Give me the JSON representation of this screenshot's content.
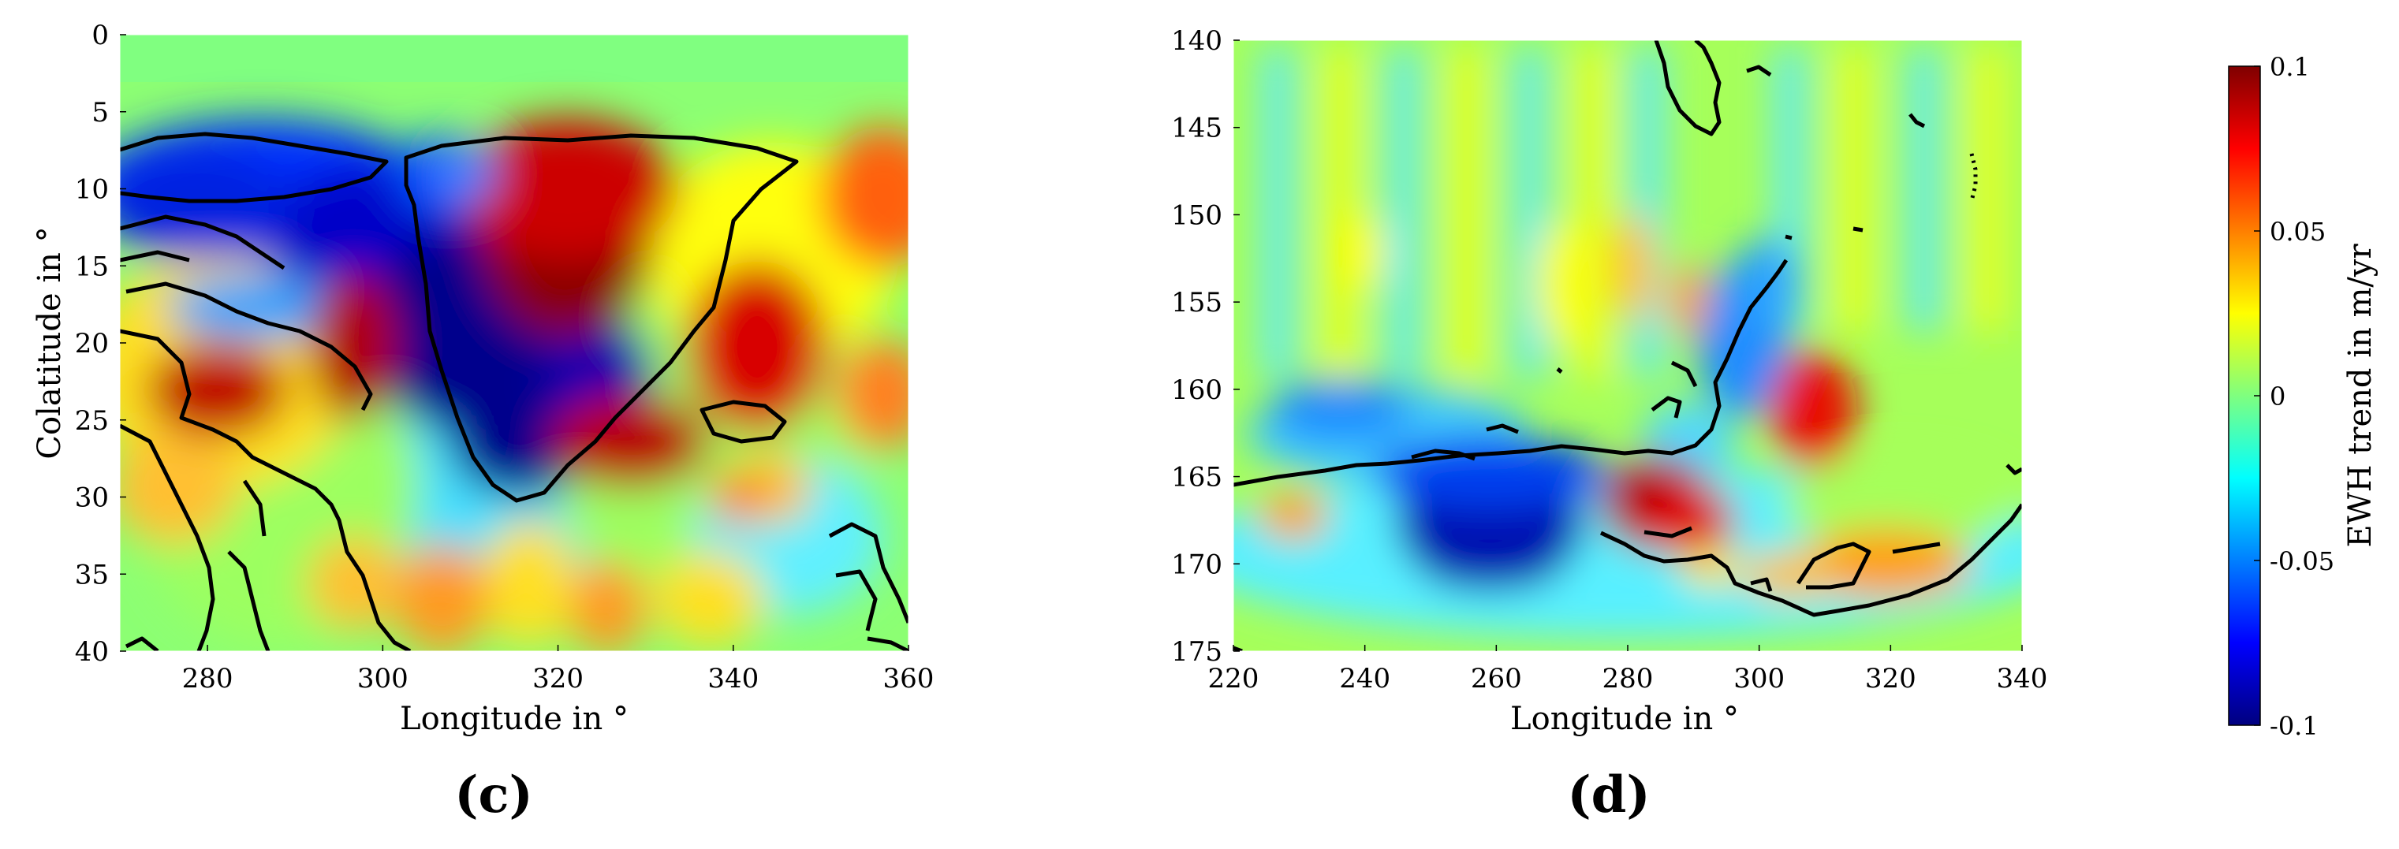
{
  "panels": [
    {
      "id": "c",
      "caption": "(c)",
      "xlabel": "Longitude in °",
      "ylabel": "Colatitude in °",
      "xticks": [
        "280",
        "300",
        "320",
        "340",
        "360"
      ],
      "yticks": [
        "0",
        "5",
        "10",
        "15",
        "20",
        "25",
        "30",
        "35",
        "40"
      ]
    },
    {
      "id": "d",
      "caption": "(d)",
      "xlabel": "Longitude in °",
      "ylabel": "",
      "xticks": [
        "220",
        "240",
        "260",
        "280",
        "300",
        "320",
        "340"
      ],
      "yticks": [
        "140",
        "145",
        "150",
        "155",
        "160",
        "165",
        "170",
        "175"
      ]
    }
  ],
  "colorbar": {
    "label": "EWH trend in m/yr",
    "ticks": [
      "0.1",
      "0.05",
      "0",
      "-0.05",
      "-0.1"
    ],
    "colormap": [
      "#00007f",
      "#0000ff",
      "#007fff",
      "#00ffff",
      "#7fff7f",
      "#ffff00",
      "#ff7f00",
      "#ff0000",
      "#7f0000"
    ]
  },
  "chart_data": [
    {
      "type": "heatmap",
      "title": "",
      "xlabel": "Longitude in °",
      "ylabel": "Colatitude in °",
      "xlim": [
        270,
        360
      ],
      "ylim": [
        0,
        40
      ],
      "y_axis_inverted": true,
      "value_range": [
        -0.1,
        0.1
      ],
      "value_units": "m/yr",
      "features": [
        {
          "lon": 315,
          "colat": 20,
          "value": -0.1
        },
        {
          "lon": 321,
          "colat": 14,
          "value": 0.1
        },
        {
          "lon": 298,
          "colat": 21,
          "value": 0.1
        },
        {
          "lon": 283,
          "colat": 23,
          "value": 0.1
        },
        {
          "lon": 327,
          "colat": 27,
          "value": 0.1
        },
        {
          "lon": 344,
          "colat": 20,
          "value": 0.09
        },
        {
          "lon": 290,
          "colat": 10,
          "value": -0.1
        },
        {
          "lon": 357,
          "colat": 13,
          "value": 0.07
        },
        {
          "lon": 300,
          "colat": 28,
          "value": -0.05
        },
        {
          "lon": 331,
          "colat": 30,
          "value": 0.06
        },
        {
          "lon": 329,
          "colat": 35,
          "value": 0.06
        }
      ]
    },
    {
      "type": "heatmap",
      "title": "",
      "xlabel": "Longitude in °",
      "ylabel": "",
      "xlim": [
        220,
        340
      ],
      "ylim": [
        140,
        175
      ],
      "y_axis_inverted": true,
      "value_range": [
        -0.1,
        0.1
      ],
      "value_units": "m/yr",
      "features": [
        {
          "lon": 257,
          "colat": 168,
          "value": -0.1
        },
        {
          "lon": 284,
          "colat": 167,
          "value": 0.1
        },
        {
          "lon": 306,
          "colat": 161,
          "value": 0.08
        },
        {
          "lon": 312,
          "colat": 170,
          "value": 0.06
        },
        {
          "lon": 247,
          "colat": 161,
          "value": -0.06
        },
        {
          "lon": 292,
          "colat": 155,
          "value": -0.06
        },
        {
          "lon": 288,
          "colat": 152,
          "value": 0.06
        },
        {
          "lon": 232,
          "colat": 167,
          "value": 0.05
        },
        {
          "lon": 296,
          "colat": 171,
          "value": 0.04
        }
      ]
    }
  ]
}
